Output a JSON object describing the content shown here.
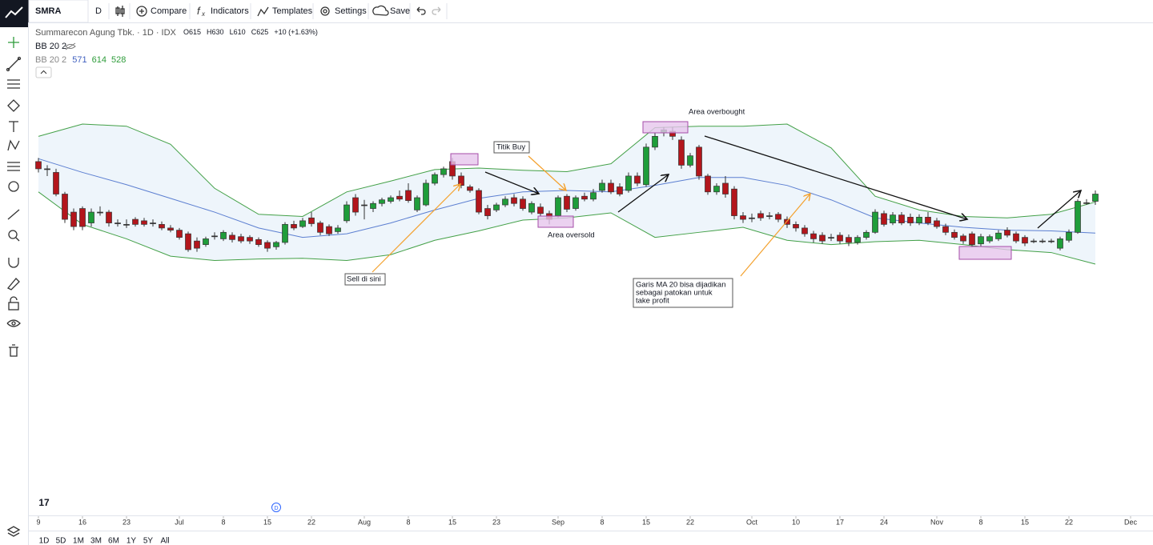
{
  "toolbar": {
    "symbol": "SMRA",
    "interval": "D",
    "buttons": [
      "Compare",
      "Indicators",
      "Templates",
      "Settings",
      "Save"
    ]
  },
  "legend": {
    "title": "Summarecon Agung Tbk. · 1D · IDX",
    "ohlc_letters": [
      "O",
      "H",
      "L",
      "C"
    ],
    "change": "+10 (+1.63%)",
    "indicators": [
      "BB 20 2",
      "BB 20 2"
    ]
  },
  "range_buttons": [
    "1D",
    "5D",
    "1M",
    "3M",
    "6M",
    "1Y",
    "5Y",
    "All"
  ],
  "chart_data": {
    "type": "candlestick",
    "candles": [
      [
        670,
        675,
        655,
        660
      ],
      [
        660,
        665,
        650,
        660
      ],
      [
        655,
        660,
        622,
        625
      ],
      [
        625,
        628,
        585,
        590
      ],
      [
        600,
        605,
        575,
        580
      ],
      [
        605,
        608,
        575,
        580
      ],
      [
        585,
        605,
        580,
        600
      ],
      [
        600,
        608,
        595,
        600
      ],
      [
        600,
        603,
        580,
        585
      ],
      [
        585,
        590,
        580,
        585
      ],
      [
        583,
        590,
        578,
        583
      ],
      [
        590,
        593,
        580,
        583
      ],
      [
        588,
        592,
        580,
        583
      ],
      [
        585,
        590,
        580,
        585
      ],
      [
        583,
        587,
        575,
        578
      ],
      [
        578,
        582,
        572,
        575
      ],
      [
        575,
        578,
        562,
        565
      ],
      [
        570,
        573,
        545,
        548
      ],
      [
        560,
        565,
        545,
        550
      ],
      [
        555,
        566,
        552,
        563
      ],
      [
        567,
        572,
        562,
        567
      ],
      [
        563,
        575,
        560,
        572
      ],
      [
        568,
        572,
        558,
        562
      ],
      [
        566,
        570,
        557,
        560
      ],
      [
        565,
        568,
        556,
        560
      ],
      [
        562,
        565,
        552,
        555
      ],
      [
        558,
        561,
        545,
        550
      ],
      [
        552,
        560,
        548,
        558
      ],
      [
        558,
        586,
        555,
        583
      ],
      [
        583,
        588,
        575,
        578
      ],
      [
        580,
        592,
        578,
        588
      ],
      [
        592,
        600,
        580,
        584
      ],
      [
        585,
        588,
        568,
        572
      ],
      [
        580,
        583,
        567,
        570
      ],
      [
        573,
        582,
        570,
        578
      ],
      [
        588,
        615,
        585,
        610
      ],
      [
        620,
        625,
        595,
        600
      ],
      [
        610,
        617,
        590,
        610
      ],
      [
        605,
        615,
        600,
        612
      ],
      [
        612,
        620,
        608,
        617
      ],
      [
        615,
        623,
        612,
        620
      ],
      [
        622,
        630,
        615,
        618
      ],
      [
        630,
        640,
        613,
        616
      ],
      [
        603,
        623,
        600,
        620
      ],
      [
        610,
        645,
        608,
        640
      ],
      [
        640,
        655,
        637,
        652
      ],
      [
        652,
        663,
        648,
        660
      ],
      [
        670,
        675,
        645,
        650
      ],
      [
        650,
        655,
        633,
        637
      ],
      [
        635,
        638,
        627,
        630
      ],
      [
        630,
        633,
        597,
        600
      ],
      [
        605,
        610,
        590,
        595
      ],
      [
        603,
        613,
        600,
        610
      ],
      [
        610,
        622,
        607,
        618
      ],
      [
        620,
        625,
        608,
        612
      ],
      [
        618,
        622,
        602,
        605
      ],
      [
        600,
        615,
        597,
        612
      ],
      [
        607,
        612,
        595,
        598
      ],
      [
        598,
        602,
        583,
        590
      ],
      [
        595,
        623,
        592,
        620
      ],
      [
        622,
        625,
        600,
        604
      ],
      [
        605,
        623,
        602,
        620
      ],
      [
        622,
        627,
        615,
        618
      ],
      [
        618,
        632,
        615,
        627
      ],
      [
        630,
        645,
        627,
        640
      ],
      [
        640,
        645,
        625,
        628
      ],
      [
        635,
        640,
        622,
        625
      ],
      [
        630,
        655,
        627,
        650
      ],
      [
        650,
        655,
        636,
        640
      ],
      [
        638,
        695,
        635,
        690
      ],
      [
        690,
        710,
        686,
        705
      ],
      [
        710,
        718,
        705,
        714
      ],
      [
        712,
        718,
        700,
        705
      ],
      [
        700,
        705,
        660,
        665
      ],
      [
        665,
        682,
        662,
        678
      ],
      [
        690,
        693,
        645,
        650
      ],
      [
        650,
        653,
        624,
        628
      ],
      [
        628,
        640,
        624,
        636
      ],
      [
        640,
        650,
        620,
        625
      ],
      [
        632,
        636,
        590,
        595
      ],
      [
        595,
        600,
        585,
        590
      ],
      [
        592,
        598,
        586,
        592
      ],
      [
        598,
        602,
        588,
        592
      ],
      [
        595,
        600,
        590,
        595
      ],
      [
        597,
        600,
        586,
        590
      ],
      [
        590,
        594,
        578,
        583
      ],
      [
        583,
        587,
        573,
        578
      ],
      [
        578,
        582,
        566,
        570
      ],
      [
        570,
        574,
        558,
        563
      ],
      [
        568,
        572,
        556,
        560
      ],
      [
        565,
        570,
        560,
        565
      ],
      [
        568,
        572,
        556,
        560
      ],
      [
        565,
        569,
        553,
        558
      ],
      [
        558,
        568,
        555,
        565
      ],
      [
        565,
        575,
        562,
        572
      ],
      [
        572,
        604,
        570,
        600
      ],
      [
        598,
        602,
        580,
        583
      ],
      [
        585,
        600,
        582,
        596
      ],
      [
        596,
        600,
        582,
        585
      ],
      [
        593,
        598,
        581,
        585
      ],
      [
        585,
        597,
        582,
        593
      ],
      [
        593,
        600,
        582,
        585
      ],
      [
        588,
        592,
        577,
        580
      ],
      [
        580,
        584,
        568,
        572
      ],
      [
        572,
        576,
        562,
        565
      ],
      [
        567,
        570,
        556,
        560
      ],
      [
        570,
        573,
        551,
        555
      ],
      [
        556,
        570,
        553,
        566
      ],
      [
        560,
        569,
        557,
        566
      ],
      [
        563,
        575,
        560,
        571
      ],
      [
        575,
        579,
        565,
        568
      ],
      [
        570,
        573,
        557,
        560
      ],
      [
        565,
        568,
        553,
        557
      ],
      [
        560,
        563,
        557,
        560
      ],
      [
        560,
        563,
        557,
        560
      ],
      [
        560,
        563,
        557,
        560
      ],
      [
        550,
        566,
        547,
        563
      ],
      [
        561,
        576,
        558,
        572
      ],
      [
        572,
        618,
        570,
        615
      ],
      [
        613,
        618,
        610,
        613
      ],
      [
        615,
        630,
        610,
        625
      ]
    ],
    "up_color": "#1f9d3a",
    "down_color": "#b3161c",
    "bands": {
      "x": [
        0,
        5,
        10,
        15,
        20,
        25,
        30,
        35,
        40,
        45,
        50,
        55,
        60,
        65,
        70,
        75,
        80,
        85,
        90,
        95,
        100,
        105,
        110,
        115,
        120
      ],
      "upper": [
        705,
        722,
        719,
        694,
        633,
        597,
        594,
        628,
        643,
        659,
        661,
        658,
        656,
        667,
        717,
        719,
        719,
        722,
        689,
        622,
        603,
        594,
        592,
        597,
        614
      ],
      "basis": [
        674,
        655,
        638,
        619,
        600,
        578,
        565,
        570,
        585,
        603,
        619,
        628,
        630,
        628,
        637,
        648,
        648,
        637,
        617,
        592,
        585,
        579,
        575,
        574,
        571
      ],
      "lower": [
        628,
        583,
        563,
        539,
        533,
        535,
        536,
        533,
        541,
        561,
        574,
        589,
        592,
        599,
        565,
        572,
        579,
        561,
        555,
        559,
        561,
        555,
        548,
        544,
        528
      ],
      "upper_color": "#43a047",
      "basis_color": "#5c7fd1",
      "lower_color": "#43a047"
    },
    "xticks": [
      {
        "value": 0,
        "label": "9"
      },
      {
        "value": 5,
        "label": "16"
      },
      {
        "value": 10,
        "label": "23"
      },
      {
        "value": 16,
        "label": "Jul"
      },
      {
        "value": 21,
        "label": "8"
      },
      {
        "value": 26,
        "label": "15"
      },
      {
        "value": 31,
        "label": "22"
      },
      {
        "value": 37,
        "label": "Aug"
      },
      {
        "value": 42,
        "label": "8"
      },
      {
        "value": 47,
        "label": "15"
      },
      {
        "value": 52,
        "label": "23"
      },
      {
        "value": 59,
        "label": "Sep"
      },
      {
        "value": 64,
        "label": "8"
      },
      {
        "value": 69,
        "label": "15"
      },
      {
        "value": 74,
        "label": "22"
      },
      {
        "value": 81,
        "label": "Oct"
      },
      {
        "value": 86,
        "label": "10"
      },
      {
        "value": 91,
        "label": "17"
      },
      {
        "value": 96,
        "label": "24"
      },
      {
        "value": 102,
        "label": "Nov"
      },
      {
        "value": 107,
        "label": "8"
      },
      {
        "value": 112,
        "label": "15"
      },
      {
        "value": 117,
        "label": "22"
      },
      {
        "value": 124,
        "label": "Dec"
      }
    ],
    "annotations": {
      "overbought": "Area overbought",
      "buy": "Titik Buy",
      "oversold": "Area oversold",
      "sell": "Sell di sini",
      "ma_note": [
        "Garis MA 20 bisa dijadikan",
        "sebagai patokan untuk",
        "take profit"
      ]
    }
  }
}
